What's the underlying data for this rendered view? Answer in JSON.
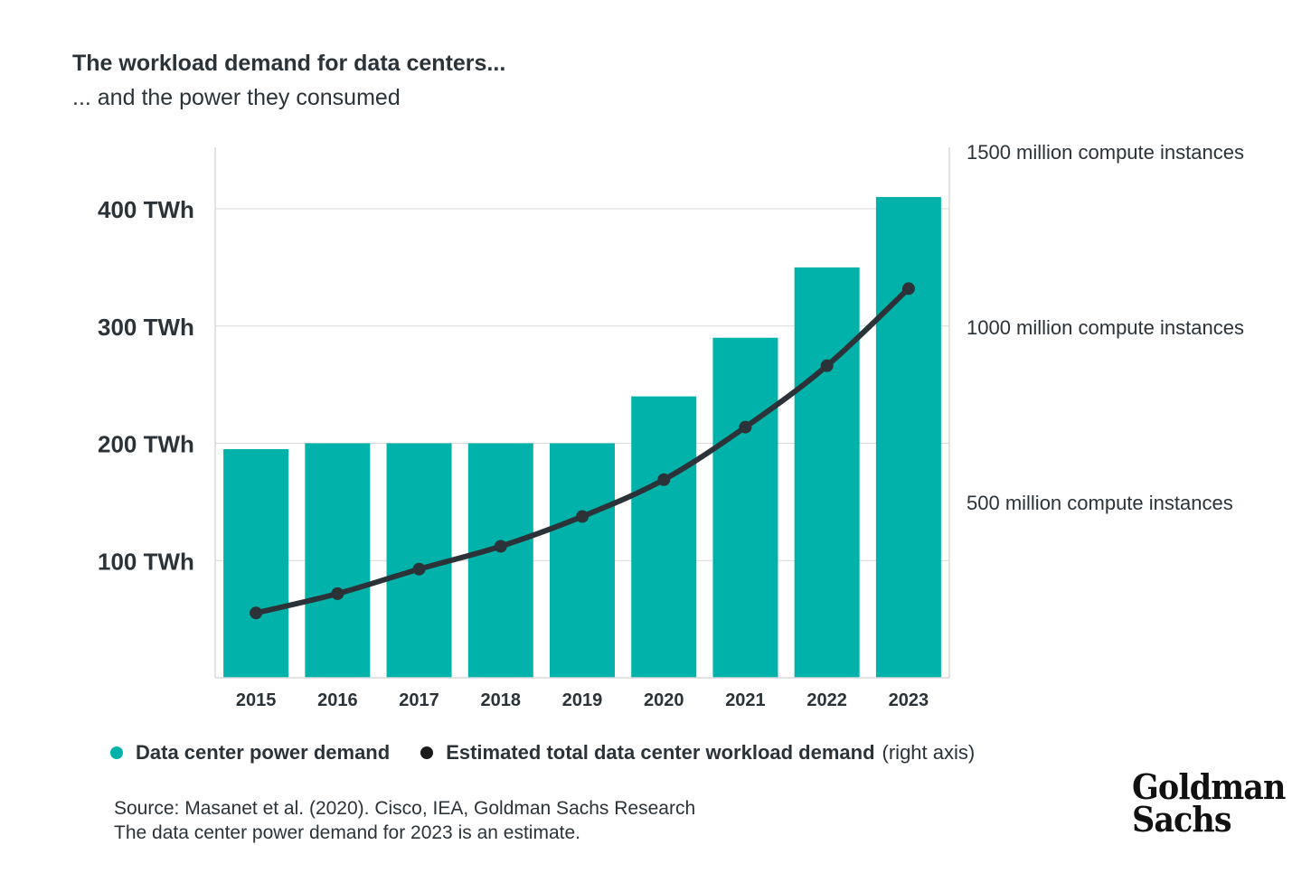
{
  "title": "The workload demand for data centers...",
  "subtitle": "... and the power they consumed",
  "chart_data": {
    "type": "bar",
    "categories": [
      "2015",
      "2016",
      "2017",
      "2018",
      "2019",
      "2020",
      "2021",
      "2022",
      "2023"
    ],
    "series": [
      {
        "name": "Data center power demand",
        "type": "bar",
        "axis": "left",
        "values": [
          195,
          200,
          200,
          200,
          200,
          240,
          290,
          350,
          410
        ],
        "color": "#00b2a9"
      },
      {
        "name": "Estimated total data center workload demand",
        "type": "line",
        "axis": "right",
        "values": [
          185,
          240,
          310,
          375,
          460,
          565,
          715,
          890,
          1110
        ],
        "color": "#2b3338"
      }
    ],
    "y_left": {
      "ticks": [
        100,
        200,
        300,
        400
      ],
      "tick_labels": [
        "100 TWh",
        "200 TWh",
        "300 TWh",
        "400 TWh"
      ],
      "range": [
        0,
        455
      ]
    },
    "y_right": {
      "ticks": [
        500,
        1000,
        1500
      ],
      "tick_labels": [
        "500 million compute instances",
        "1000 million compute instances",
        "1500 million compute instances"
      ],
      "range": [
        0,
        1530
      ]
    },
    "grid": true,
    "legend_position": "bottom-left"
  },
  "legend": {
    "bars": "Data center power demand",
    "line": "Estimated total data center workload demand",
    "line_note": "(right axis)"
  },
  "source": {
    "line1": "Source: Masanet et al. (2020). Cisco, IEA, Goldman Sachs Research",
    "line2": "The data center power demand for 2023 is an estimate."
  },
  "logo": {
    "line1": "Goldman",
    "line2": "Sachs"
  },
  "colors": {
    "bar": "#00b2a9",
    "line": "#2b3338",
    "grid": "#d9d9d9",
    "text": "#2b3338"
  }
}
